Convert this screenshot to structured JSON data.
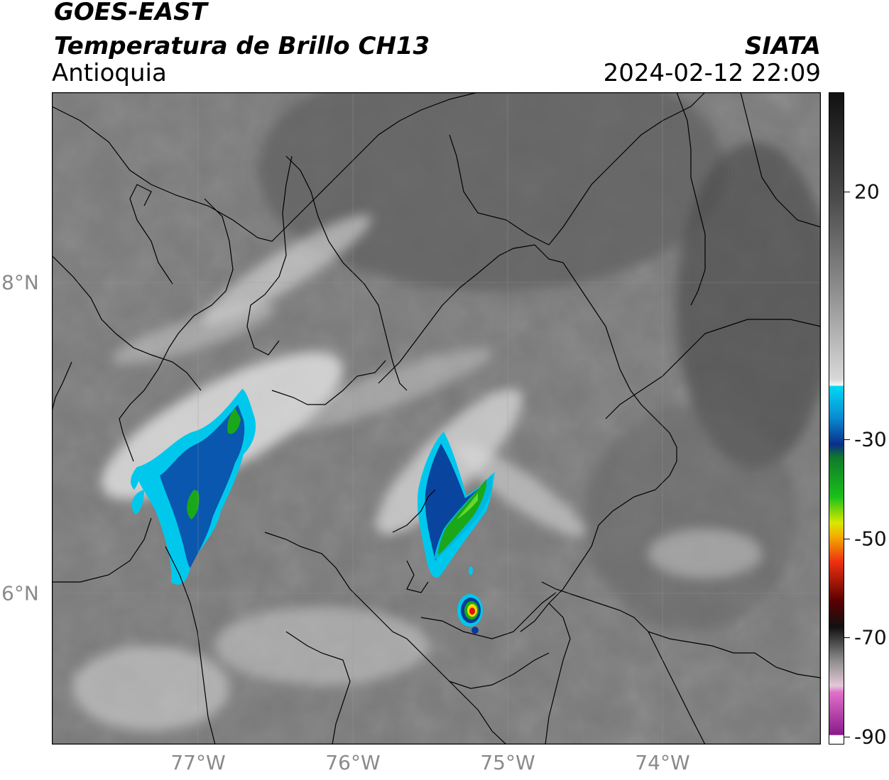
{
  "header": {
    "satellite": "GOES-EAST",
    "product": "Temperatura de Brillo CH13",
    "region": "Antioquia",
    "organization": "SIATA",
    "timestamp": "2024-02-12 22:09"
  },
  "map": {
    "lon_labels": [
      "77°W",
      "76°W",
      "75°W",
      "74°W"
    ],
    "lat_labels": [
      "8°N",
      "6°N"
    ],
    "colorbar": {
      "units_range": [
        -90,
        40
      ],
      "tick_labels": [
        "20",
        "-30",
        "-50",
        "-70",
        "-90"
      ],
      "colors": {
        "warm_top": "#1a1a1a",
        "warm_mid": "#8c8c8c",
        "neutral": "#f2f2f2",
        "cyan": "#00cfee",
        "blue": "#0a2f8a",
        "green": "#19b019",
        "yellow": "#f2d800",
        "red": "#e01010",
        "dark": "#202020",
        "magenta": "#c03cb8"
      }
    }
  }
}
